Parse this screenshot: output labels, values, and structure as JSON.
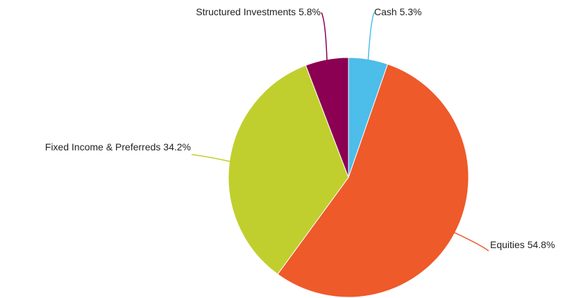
{
  "chart_data": {
    "type": "pie",
    "categories": [
      "Cash",
      "Equities",
      "Fixed Income & Preferreds",
      "Structured Investments"
    ],
    "values": [
      5.3,
      54.8,
      34.2,
      5.8
    ],
    "value_labels": [
      "5.3%",
      "54.8%",
      "34.2%",
      "5.8%"
    ],
    "colors": [
      "#4dbde9",
      "#ee5a2a",
      "#c0cf2e",
      "#8b0052"
    ]
  }
}
